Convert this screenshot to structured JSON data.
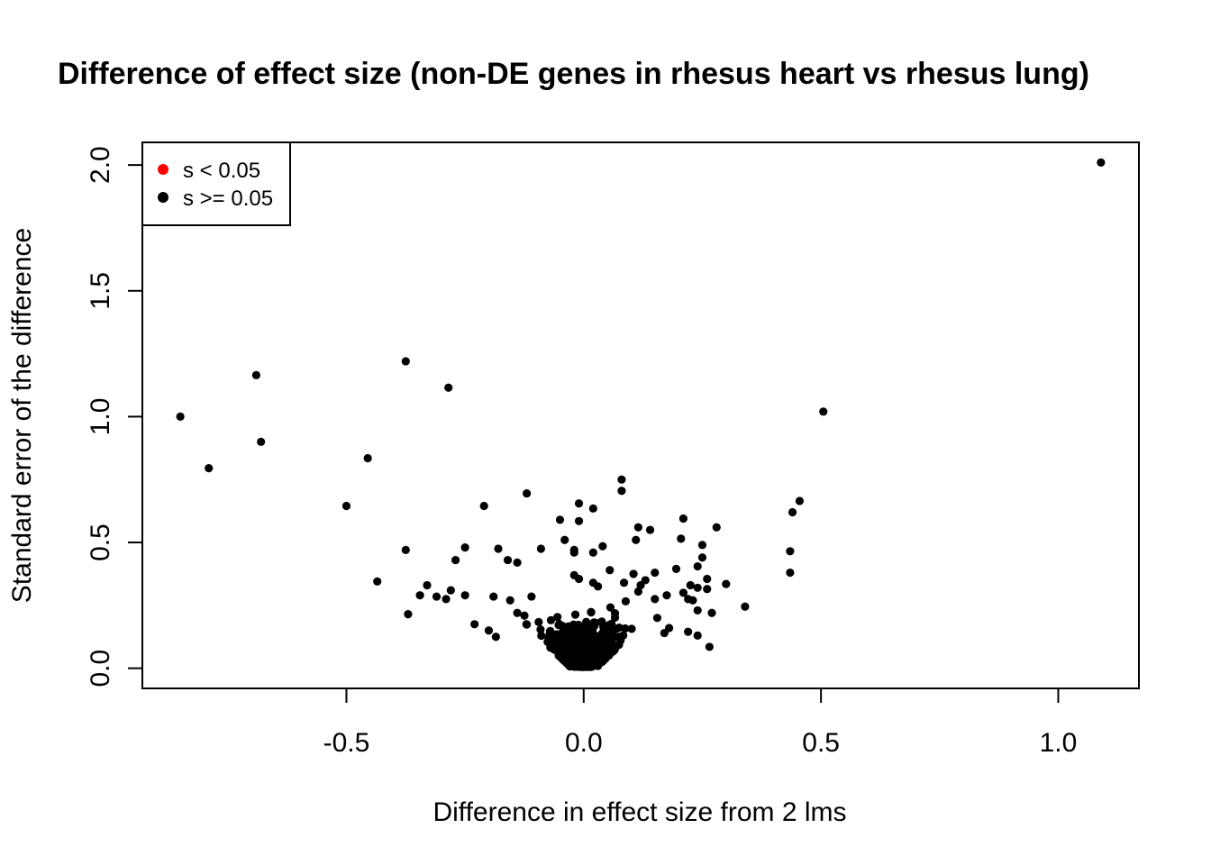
{
  "chart_data": {
    "type": "scatter",
    "title": "Difference of effect size (non-DE genes in rhesus heart vs rhesus lung)",
    "xlabel": "Difference in effect size from 2 lms",
    "ylabel": "Standard error of the difference",
    "xlim": [
      -0.93,
      1.17
    ],
    "ylim": [
      -0.08,
      2.09
    ],
    "x_ticks": [
      -0.5,
      0.0,
      0.5,
      1.0
    ],
    "x_tick_labels": [
      "-0.5",
      "0.0",
      "0.5",
      "1.0"
    ],
    "y_ticks": [
      0.0,
      0.5,
      1.0,
      1.5,
      2.0
    ],
    "y_tick_labels": [
      "0.0",
      "0.5",
      "1.0",
      "1.5",
      "2.0"
    ],
    "grid": false,
    "legend": {
      "position": "top-left",
      "entries": [
        {
          "label": "s < 0.05",
          "color": "#ff0000"
        },
        {
          "label": "s >= 0.05",
          "color": "#000000"
        }
      ]
    },
    "series": [
      {
        "color": "#000000",
        "points": [
          [
            1.09,
            2.01
          ],
          [
            -0.85,
            1.0
          ],
          [
            -0.69,
            1.165
          ],
          [
            -0.68,
            0.9
          ],
          [
            -0.79,
            0.795
          ],
          [
            -0.375,
            1.22
          ],
          [
            -0.285,
            1.115
          ],
          [
            0.505,
            1.02
          ],
          [
            -0.455,
            0.835
          ],
          [
            -0.5,
            0.645
          ],
          [
            0.08,
            0.75
          ],
          [
            0.08,
            0.705
          ],
          [
            0.455,
            0.665
          ],
          [
            0.44,
            0.62
          ],
          [
            -0.12,
            0.695
          ],
          [
            -0.21,
            0.645
          ],
          [
            -0.01,
            0.655
          ],
          [
            0.02,
            0.635
          ],
          [
            -0.05,
            0.59
          ],
          [
            -0.01,
            0.585
          ],
          [
            0.21,
            0.595
          ],
          [
            0.115,
            0.56
          ],
          [
            0.14,
            0.55
          ],
          [
            0.28,
            0.56
          ],
          [
            0.11,
            0.51
          ],
          [
            0.205,
            0.515
          ],
          [
            -0.04,
            0.51
          ],
          [
            0.25,
            0.49
          ],
          [
            -0.25,
            0.48
          ],
          [
            -0.18,
            0.475
          ],
          [
            -0.09,
            0.475
          ],
          [
            -0.02,
            0.47
          ],
          [
            -0.02,
            0.46
          ],
          [
            0.02,
            0.46
          ],
          [
            0.04,
            0.485
          ],
          [
            0.435,
            0.465
          ],
          [
            -0.375,
            0.47
          ],
          [
            -0.27,
            0.43
          ],
          [
            -0.16,
            0.43
          ],
          [
            -0.14,
            0.42
          ],
          [
            0.25,
            0.44
          ],
          [
            0.24,
            0.405
          ],
          [
            0.435,
            0.38
          ],
          [
            0.195,
            0.395
          ],
          [
            0.15,
            0.38
          ],
          [
            0.105,
            0.375
          ],
          [
            0.055,
            0.39
          ],
          [
            -0.02,
            0.37
          ],
          [
            -0.01,
            0.355
          ],
          [
            0.02,
            0.34
          ],
          [
            0.03,
            0.325
          ],
          [
            -0.435,
            0.345
          ],
          [
            -0.33,
            0.33
          ],
          [
            -0.345,
            0.29
          ],
          [
            -0.31,
            0.285
          ],
          [
            -0.29,
            0.275
          ],
          [
            -0.28,
            0.31
          ],
          [
            -0.25,
            0.29
          ],
          [
            -0.19,
            0.285
          ],
          [
            -0.155,
            0.27
          ],
          [
            -0.11,
            0.285
          ],
          [
            0.26,
            0.355
          ],
          [
            0.3,
            0.335
          ],
          [
            0.26,
            0.315
          ],
          [
            0.24,
            0.32
          ],
          [
            0.225,
            0.33
          ],
          [
            0.21,
            0.3
          ],
          [
            0.12,
            0.33
          ],
          [
            0.13,
            0.35
          ],
          [
            0.085,
            0.34
          ],
          [
            0.34,
            0.245
          ],
          [
            0.27,
            0.22
          ],
          [
            0.24,
            0.23
          ],
          [
            0.23,
            0.27
          ],
          [
            0.175,
            0.29
          ],
          [
            0.15,
            0.275
          ],
          [
            0.115,
            0.305
          ],
          [
            -0.37,
            0.215
          ],
          [
            -0.23,
            0.175
          ],
          [
            -0.2,
            0.15
          ],
          [
            0.265,
            0.085
          ],
          [
            0.24,
            0.13
          ],
          [
            0.22,
            0.145
          ],
          [
            0.18,
            0.16
          ],
          [
            0.17,
            0.14
          ],
          [
            0.155,
            0.2
          ],
          [
            -0.185,
            0.125
          ],
          [
            -0.14,
            0.22
          ],
          [
            0.22,
            0.275
          ]
        ],
        "dense_cluster": {
          "description_center": [
            0.0,
            0.1
          ],
          "x_spread": [
            -0.2,
            0.2
          ],
          "y_range": [
            0.0,
            0.32
          ],
          "count": 900
        }
      }
    ]
  }
}
